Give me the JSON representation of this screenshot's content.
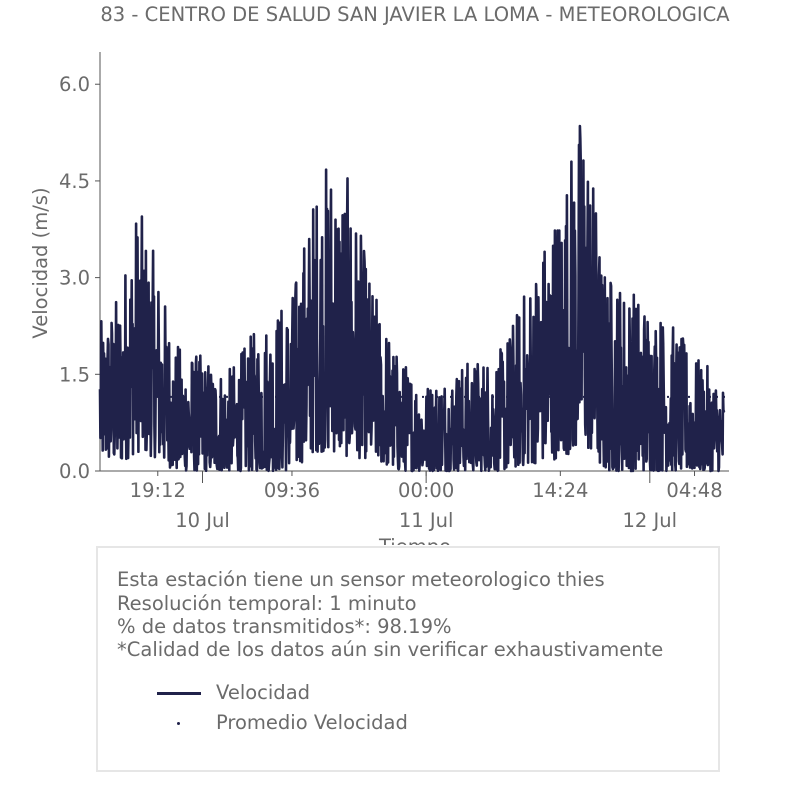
{
  "chart_data": {
    "type": "line",
    "title": "83 - CENTRO DE SALUD SAN JAVIER LA LOMA - METEOROLOGICA",
    "xlabel": "Tiempo",
    "ylabel": "Velocidad (m/s)",
    "ylim": [
      0,
      6.5
    ],
    "y_ticks": [
      "0.0",
      "1.5",
      "3.0",
      "4.5",
      "6.0"
    ],
    "x_ticks": [
      "19:12",
      "09:36",
      "00:00",
      "14:24",
      "04:48"
    ],
    "x_date_ticks": [
      "10 Jul",
      "11 Jul",
      "12 Jul"
    ],
    "x_range": [
      "2023-07-09T13:00",
      "2023-07-12T08:30"
    ],
    "series": [
      {
        "name": "Velocidad",
        "color": "#20224a",
        "style": "solid",
        "envelope": [
          {
            "t": "2023-07-09T13:00",
            "min": 0.2,
            "max": 2.3
          },
          {
            "t": "2023-07-09T15:00",
            "min": 0.1,
            "max": 2.8
          },
          {
            "t": "2023-07-09T17:00",
            "min": 0.3,
            "max": 4.2
          },
          {
            "t": "2023-07-09T19:12",
            "min": 0.2,
            "max": 3.2
          },
          {
            "t": "2023-07-09T21:00",
            "min": 0.0,
            "max": 2.0
          },
          {
            "t": "2023-07-10T00:00",
            "min": 0.0,
            "max": 1.8
          },
          {
            "t": "2023-07-10T03:00",
            "min": 0.0,
            "max": 1.6
          },
          {
            "t": "2023-07-10T06:00",
            "min": 0.0,
            "max": 2.3
          },
          {
            "t": "2023-07-10T09:36",
            "min": 0.0,
            "max": 2.8
          },
          {
            "t": "2023-07-10T12:00",
            "min": 0.3,
            "max": 4.4
          },
          {
            "t": "2023-07-10T14:00",
            "min": 0.3,
            "max": 5.1
          },
          {
            "t": "2023-07-10T16:00",
            "min": 0.2,
            "max": 4.4
          },
          {
            "t": "2023-07-10T18:00",
            "min": 0.2,
            "max": 3.0
          },
          {
            "t": "2023-07-10T21:00",
            "min": 0.0,
            "max": 1.8
          },
          {
            "t": "2023-07-11T00:00",
            "min": 0.0,
            "max": 1.4
          },
          {
            "t": "2023-07-11T04:00",
            "min": 0.0,
            "max": 1.7
          },
          {
            "t": "2023-07-11T08:00",
            "min": 0.0,
            "max": 1.9
          },
          {
            "t": "2023-07-11T11:00",
            "min": 0.1,
            "max": 3.0
          },
          {
            "t": "2023-07-11T14:24",
            "min": 0.2,
            "max": 4.4
          },
          {
            "t": "2023-07-11T17:00",
            "min": 0.4,
            "max": 5.9
          },
          {
            "t": "2023-07-11T19:00",
            "min": 0.0,
            "max": 3.2
          },
          {
            "t": "2023-07-11T23:00",
            "min": 0.0,
            "max": 2.8
          },
          {
            "t": "2023-07-12T02:00",
            "min": 0.0,
            "max": 2.4
          },
          {
            "t": "2023-07-12T04:48",
            "min": 0.0,
            "max": 1.8
          },
          {
            "t": "2023-07-12T08:00",
            "min": 0.0,
            "max": 1.4
          }
        ]
      },
      {
        "name": "Promedio Velocidad",
        "color": "#20224a",
        "style": "dotted",
        "value": 1.15
      }
    ],
    "grid": false,
    "legend": "bottom box"
  },
  "info": {
    "line1": "Esta estación tiene un sensor meteorologico thies",
    "line2": "Resolución temporal: 1 minuto",
    "line3": "% de datos transmitidos*: 98.19%",
    "line4": "*Calidad de los datos aún sin verificar exhaustivamente"
  },
  "legend": {
    "item1": "Velocidad",
    "item2": "Promedio Velocidad"
  }
}
